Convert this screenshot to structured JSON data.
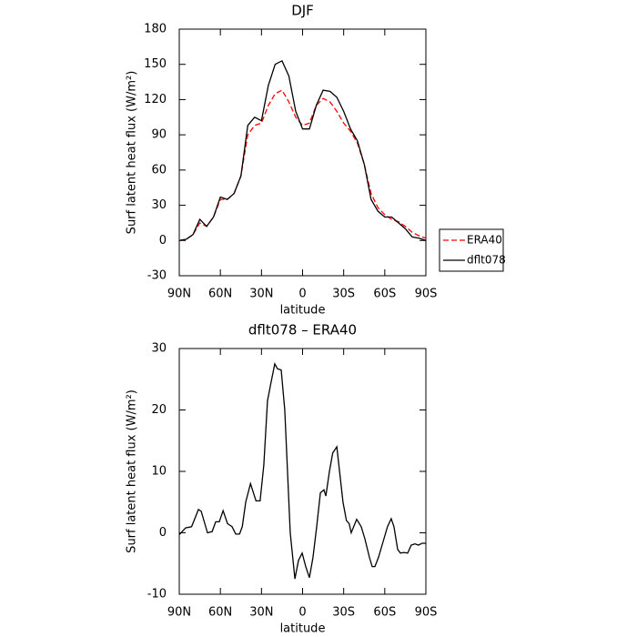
{
  "chart_data": [
    {
      "type": "line",
      "title": "DJF",
      "xlabel": "latitude",
      "ylabel": "Surf latent heat flux (W/m²)",
      "x": [
        90,
        85,
        80,
        75,
        70,
        65,
        60,
        55,
        50,
        45,
        40,
        35,
        30,
        25,
        20,
        15,
        10,
        5,
        0,
        -5,
        -10,
        -15,
        -20,
        -25,
        -30,
        -35,
        -40,
        -45,
        -50,
        -55,
        -60,
        -65,
        -70,
        -75,
        -80,
        -85,
        -90
      ],
      "series": [
        {
          "name": "ERA40",
          "color": "#ff0000",
          "linestyle": "dashed",
          "values": [
            0,
            1,
            5,
            15,
            12,
            20,
            35,
            35,
            40,
            55,
            90,
            98,
            100,
            115,
            125,
            128,
            118,
            105,
            98,
            100,
            115,
            121,
            118,
            110,
            100,
            93,
            83,
            65,
            40,
            28,
            22,
            18,
            16,
            12,
            7,
            4,
            2
          ]
        },
        {
          "name": "dflt078",
          "color": "#000000",
          "linestyle": "solid",
          "values": [
            0,
            1,
            5,
            18,
            12,
            20,
            37,
            35,
            40,
            55,
            98,
            105,
            102,
            132,
            150,
            153,
            140,
            110,
            95,
            95,
            115,
            128,
            127,
            122,
            110,
            95,
            85,
            65,
            35,
            25,
            20,
            20,
            15,
            10,
            3,
            2,
            0
          ]
        }
      ],
      "xlim": [
        90,
        -90
      ],
      "ylim": [
        -30,
        180
      ],
      "xticks": [
        {
          "value": 90,
          "label": "90N"
        },
        {
          "value": 60,
          "label": "60N"
        },
        {
          "value": 30,
          "label": "30N"
        },
        0,
        {
          "value": -30,
          "label": "30S"
        },
        {
          "value": -60,
          "label": "60S"
        },
        {
          "value": -90,
          "label": "90S"
        }
      ],
      "yticks": [
        -30,
        0,
        30,
        60,
        90,
        120,
        150,
        180
      ],
      "legend": "right"
    },
    {
      "type": "line",
      "title": "dflt078 – ERA40",
      "xlabel": "latitude",
      "ylabel": "Surf latent heat flux (W/m²)",
      "x": [
        90,
        85.4,
        81,
        76,
        74,
        69.4,
        66,
        63.4,
        60.8,
        58,
        54.8,
        51.5,
        48.8,
        46,
        44,
        41.5,
        38,
        34,
        31,
        28.3,
        25.6,
        23,
        20.3,
        18.3,
        15.6,
        13,
        11,
        9,
        5.6,
        3,
        0.3,
        -2.3,
        -5,
        -7.6,
        -10.3,
        -13,
        -15.6,
        -17,
        -19.6,
        -22,
        -25,
        -27.5,
        -29.5,
        -32,
        -34,
        -35.5,
        -39.5,
        -42.8,
        -45.5,
        -48.8,
        -50.8,
        -52.8,
        -55.4,
        -58.7,
        -62,
        -64.7,
        -66.7,
        -69.4,
        -71.4,
        -74,
        -76.7,
        -79.3,
        -82,
        -84.6,
        -87.3,
        -90
      ],
      "values": [
        -0.3,
        0.8,
        1,
        3.8,
        3.5,
        0,
        0.2,
        1.8,
        1.8,
        3.6,
        1.5,
        1,
        -0.2,
        -0.2,
        1,
        5,
        8,
        5.2,
        5.2,
        11,
        21.5,
        24.5,
        27.5,
        26.7,
        26.5,
        20,
        10,
        0,
        -7.5,
        -4.5,
        -3.3,
        -5.5,
        -7.3,
        -4,
        1,
        6.5,
        7,
        6,
        10,
        13,
        14,
        9,
        5,
        2,
        1.5,
        0,
        2.2,
        1,
        -1,
        -4,
        -5.5,
        -5.5,
        -4,
        -1.5,
        1,
        2.3,
        1,
        -2.7,
        -3.3,
        -3.2,
        -3.3,
        -2,
        -1.8,
        -2,
        -1.7,
        -1.7
      ],
      "color": "#000000",
      "xlim": [
        90,
        -90
      ],
      "ylim": [
        -10,
        30
      ],
      "xticks": [
        {
          "value": 90,
          "label": "90N"
        },
        {
          "value": 60,
          "label": "60N"
        },
        {
          "value": 30,
          "label": "30N"
        },
        0,
        {
          "value": -30,
          "label": "30S"
        },
        {
          "value": -60,
          "label": "60S"
        },
        {
          "value": -90,
          "label": "90S"
        }
      ],
      "yticks": [
        -10,
        0,
        10,
        20,
        30
      ]
    }
  ]
}
